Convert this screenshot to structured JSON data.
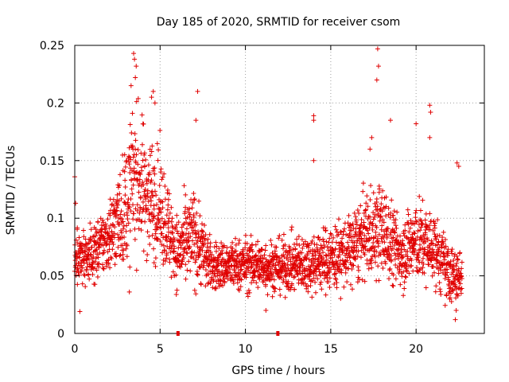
{
  "chart_data": {
    "type": "scatter",
    "title": "Day 185 of 2020, SRMTID for receiver csom",
    "xlabel": "GPS time / hours",
    "ylabel": "SRMTID / TECUs",
    "xlim": [
      0,
      24
    ],
    "ylim": [
      0,
      0.25
    ],
    "x_ticks": [
      0,
      5,
      10,
      15,
      20
    ],
    "x_tick_labels": [
      "0",
      "5",
      "10",
      "15",
      "20"
    ],
    "y_ticks": [
      0,
      0.05,
      0.1,
      0.15,
      0.2,
      0.25
    ],
    "y_tick_labels": [
      "0",
      "0.05",
      "0.1",
      "0.15",
      "0.2",
      "0.25"
    ],
    "grid": true,
    "marker": "+",
    "color": "#e00000",
    "series": [
      {
        "name": "SRMTID",
        "profile": [
          {
            "x": 0.0,
            "mean": 0.065,
            "spread": 0.025
          },
          {
            "x": 1.0,
            "mean": 0.068,
            "spread": 0.022
          },
          {
            "x": 2.0,
            "mean": 0.085,
            "spread": 0.03
          },
          {
            "x": 3.0,
            "mean": 0.11,
            "spread": 0.05
          },
          {
            "x": 3.5,
            "mean": 0.14,
            "spread": 0.06
          },
          {
            "x": 4.0,
            "mean": 0.125,
            "spread": 0.055
          },
          {
            "x": 5.0,
            "mean": 0.11,
            "spread": 0.045
          },
          {
            "x": 6.0,
            "mean": 0.07,
            "spread": 0.03
          },
          {
            "x": 7.0,
            "mean": 0.085,
            "spread": 0.04
          },
          {
            "x": 8.0,
            "mean": 0.058,
            "spread": 0.02
          },
          {
            "x": 10.0,
            "mean": 0.06,
            "spread": 0.022
          },
          {
            "x": 12.0,
            "mean": 0.058,
            "spread": 0.022
          },
          {
            "x": 14.0,
            "mean": 0.062,
            "spread": 0.025
          },
          {
            "x": 16.0,
            "mean": 0.07,
            "spread": 0.03
          },
          {
            "x": 17.0,
            "mean": 0.085,
            "spread": 0.035
          },
          {
            "x": 18.0,
            "mean": 0.09,
            "spread": 0.04
          },
          {
            "x": 19.0,
            "mean": 0.07,
            "spread": 0.03
          },
          {
            "x": 20.0,
            "mean": 0.08,
            "spread": 0.035
          },
          {
            "x": 21.0,
            "mean": 0.075,
            "spread": 0.03
          },
          {
            "x": 22.0,
            "mean": 0.05,
            "spread": 0.025
          },
          {
            "x": 22.7,
            "mean": 0.05,
            "spread": 0.02
          }
        ],
        "x_range": [
          0,
          22.7
        ],
        "point_count": 2400,
        "outliers": [
          {
            "x": 3.45,
            "y": 0.243
          },
          {
            "x": 3.5,
            "y": 0.238
          },
          {
            "x": 3.6,
            "y": 0.232
          },
          {
            "x": 3.3,
            "y": 0.215
          },
          {
            "x": 3.55,
            "y": 0.222
          },
          {
            "x": 4.5,
            "y": 0.205
          },
          {
            "x": 4.7,
            "y": 0.2
          },
          {
            "x": 4.6,
            "y": 0.21
          },
          {
            "x": 7.2,
            "y": 0.21
          },
          {
            "x": 7.1,
            "y": 0.185
          },
          {
            "x": 14.0,
            "y": 0.189
          },
          {
            "x": 14.0,
            "y": 0.185
          },
          {
            "x": 17.75,
            "y": 0.247
          },
          {
            "x": 17.8,
            "y": 0.232
          },
          {
            "x": 17.7,
            "y": 0.22
          },
          {
            "x": 20.0,
            "y": 0.182
          },
          {
            "x": 20.8,
            "y": 0.198
          },
          {
            "x": 20.85,
            "y": 0.192
          },
          {
            "x": 20.8,
            "y": 0.17
          },
          {
            "x": 0.0,
            "y": 0.136
          },
          {
            "x": 0.05,
            "y": 0.113
          },
          {
            "x": 14.0,
            "y": 0.15
          },
          {
            "x": 17.3,
            "y": 0.16
          },
          {
            "x": 17.4,
            "y": 0.17
          },
          {
            "x": 18.5,
            "y": 0.185
          },
          {
            "x": 22.4,
            "y": 0.148
          },
          {
            "x": 22.5,
            "y": 0.145
          },
          {
            "x": 22.3,
            "y": 0.012
          },
          {
            "x": 22.35,
            "y": 0.02
          },
          {
            "x": 3.2,
            "y": 0.036
          },
          {
            "x": 0.3,
            "y": 0.019
          },
          {
            "x": 11.2,
            "y": 0.02
          }
        ]
      }
    ],
    "axis_markers": [
      {
        "x": 6.05,
        "y": 0
      },
      {
        "x": 11.9,
        "y": 0
      }
    ]
  }
}
